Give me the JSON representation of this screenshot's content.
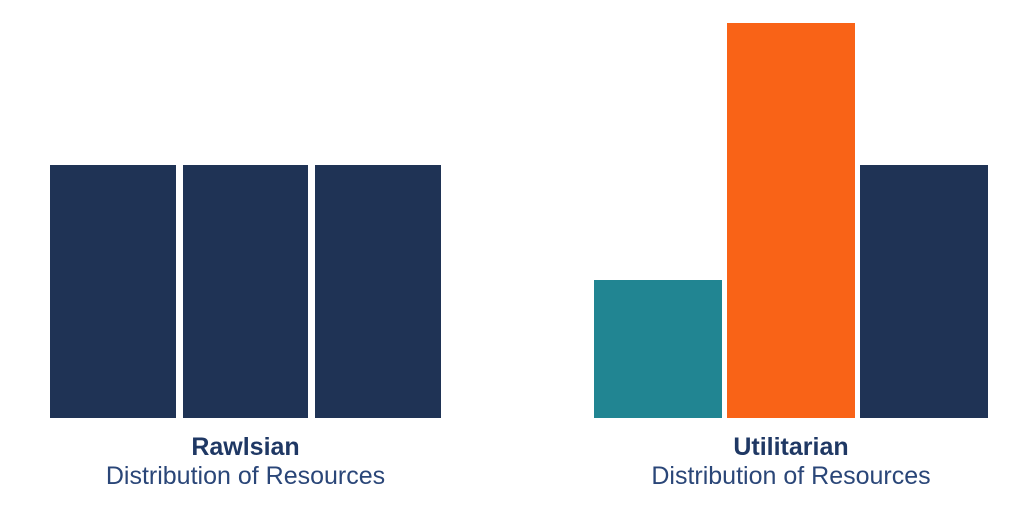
{
  "page": {
    "background_color": "#FFFFFF",
    "text_title_color": "#1F3864",
    "text_subtitle_color": "#2A4678"
  },
  "chart_data": [
    {
      "type": "bar",
      "title": "Rawlsian",
      "subtitle": "Distribution of Resources",
      "values": [
        64,
        64,
        64
      ],
      "bar_colors": [
        "#1F3355",
        "#1F3355",
        "#1F3355"
      ],
      "ylim": [
        0,
        100
      ],
      "xlabel": "",
      "ylabel": "",
      "axes_visible": false,
      "grid": false,
      "legend": false
    },
    {
      "type": "bar",
      "title": "Utilitarian",
      "subtitle": "Distribution of Resources",
      "values": [
        35,
        100,
        64
      ],
      "bar_colors": [
        "#218592",
        "#F96317",
        "#1F3355"
      ],
      "ylim": [
        0,
        100
      ],
      "xlabel": "",
      "ylabel": "",
      "axes_visible": false,
      "grid": false,
      "legend": false
    }
  ]
}
